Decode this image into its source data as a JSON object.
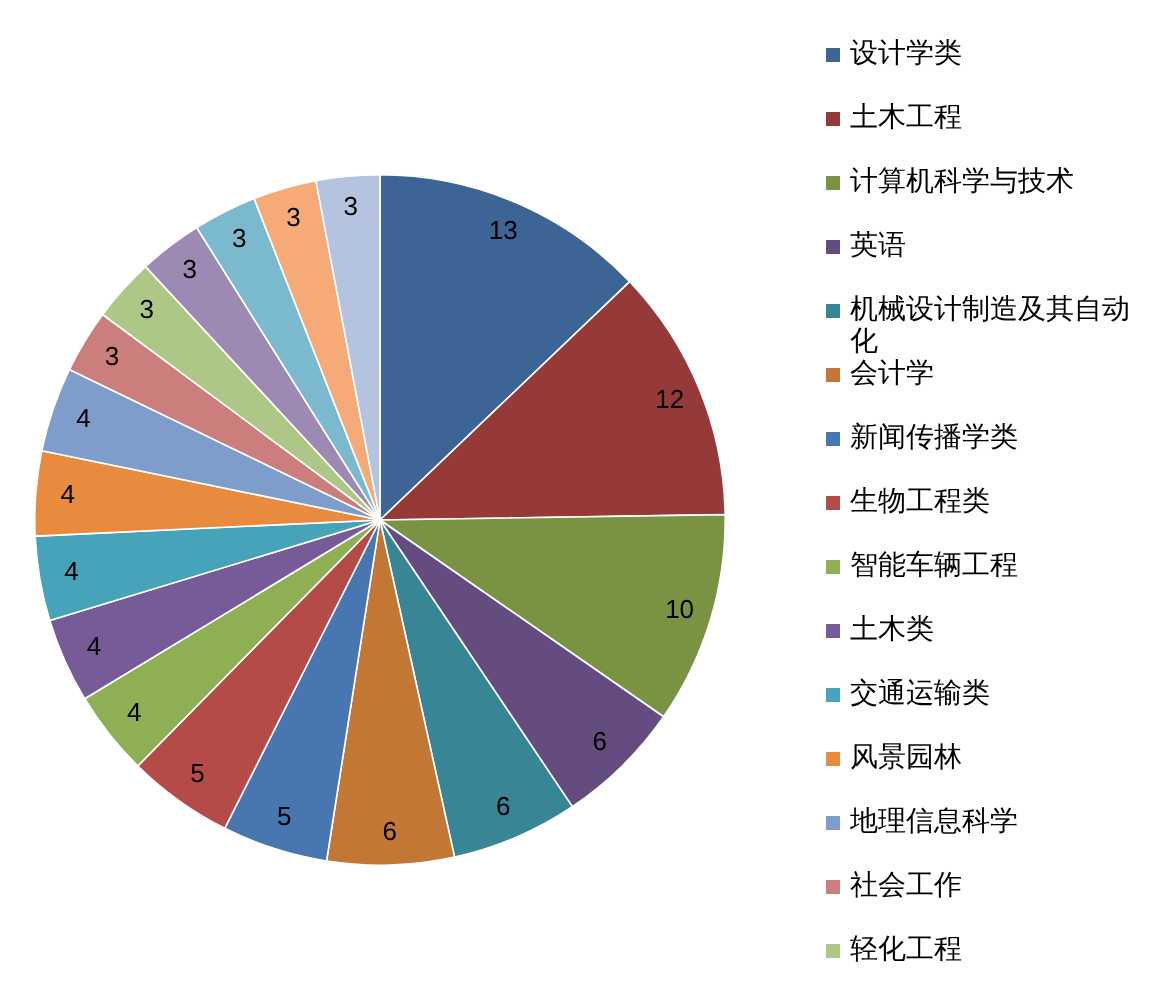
{
  "chart_data": {
    "type": "pie",
    "categories": [
      "设计学类",
      "土木工程",
      "计算机科学与技术",
      "英语",
      "机械设计制造及其自动化",
      "会计学",
      "新闻传播学类",
      "生物工程类",
      "智能车辆工程",
      "土木类",
      "交通运输类",
      "风景园林",
      "地理信息科学",
      "社会工作",
      "轻化工程",
      null,
      null,
      null,
      null
    ],
    "values": [
      13,
      12,
      10,
      6,
      6,
      6,
      5,
      5,
      4,
      4,
      4,
      4,
      4,
      3,
      3,
      3,
      3,
      3,
      3
    ],
    "colors": [
      "#3c6595",
      "#953a39",
      "#7a9343",
      "#644c80",
      "#388596",
      "#c37735",
      "#4876b0",
      "#b44b49",
      "#8faf54",
      "#775b98",
      "#46a3ba",
      "#e98b3f",
      "#7f9dcb",
      "#cb7e7c",
      "#adc786",
      "#9c8ab4",
      "#7bb9cf",
      "#f6aa77",
      "#b4c3df"
    ],
    "data_labels": true,
    "legend": "right"
  }
}
